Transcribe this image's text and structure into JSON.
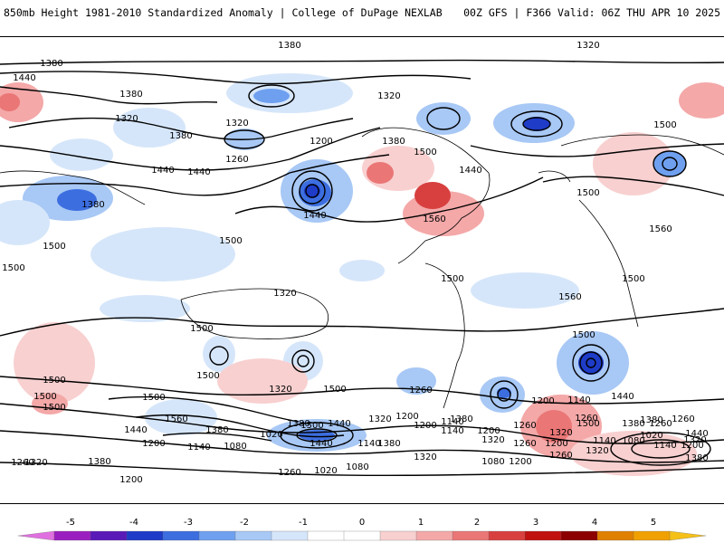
{
  "header": {
    "left_title": "850mb Height 1981-2010 Standardized Anomaly | College of DuPage NEXLAB",
    "right_title": "00Z GFS | F366 Valid: 06Z THU APR 10 2025"
  },
  "map": {
    "projection": "global cylindrical",
    "contour_labels": [
      "1320",
      "1380",
      "1440",
      "1380",
      "1320",
      "1380",
      "1440",
      "1380",
      "1500",
      "1440",
      "1380",
      "1320",
      "1260",
      "1200",
      "1320",
      "1380",
      "1440",
      "1500",
      "1440",
      "1560",
      "1500",
      "1560",
      "1500",
      "1560",
      "1500",
      "1500",
      "1500",
      "1320",
      "1500",
      "1500",
      "1500",
      "1500",
      "1500",
      "1500",
      "1500",
      "1500",
      "1500",
      "1560",
      "1440",
      "1380",
      "1320",
      "1500",
      "1440",
      "1380",
      "1320",
      "1260",
      "1140",
      "1080",
      "1200",
      "1140",
      "1260",
      "1320",
      "1200",
      "1140",
      "1080",
      "1020",
      "1140",
      "1200",
      "1380",
      "1440",
      "1380",
      "1320",
      "1260",
      "1200",
      "1260",
      "1020",
      "1080",
      "1140",
      "1200",
      "1380",
      "1320",
      "1260",
      "1200",
      "1500",
      "1440",
      "1380",
      "1260",
      "1260",
      "1320",
      "1380",
      "1200",
      "1140",
      "1080",
      "1020",
      "1380",
      "1440",
      "1320",
      "1200",
      "1140",
      "1200",
      "1260",
      "1260",
      "1320"
    ]
  },
  "colorbar": {
    "ticks": [
      "-5",
      "-4",
      "-3",
      "-2",
      "-1",
      "0",
      "1",
      "2",
      "3",
      "4",
      "5"
    ],
    "colors": [
      "#e070e0",
      "#9a1fc0",
      "#5a1ab8",
      "#1e3cc8",
      "#3c6ee0",
      "#6fa0f0",
      "#a8c8f5",
      "#d6e6fa",
      "#ffffff",
      "#ffffff",
      "#f8d0d0",
      "#f4a8a8",
      "#ea7676",
      "#d84040",
      "#c01010",
      "#8c0000",
      "#e08000",
      "#f0a000",
      "#f5c018"
    ]
  }
}
